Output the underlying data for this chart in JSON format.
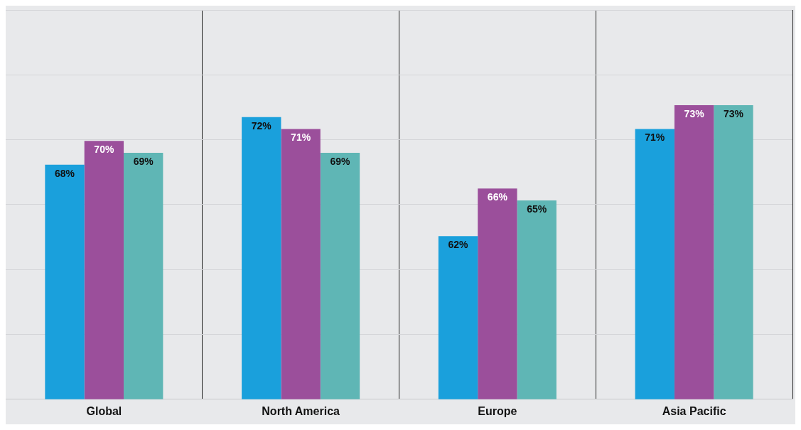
{
  "chart_data": {
    "type": "bar",
    "categories": [
      "Global",
      "North America",
      "Europe",
      "Asia Pacific"
    ],
    "series": [
      {
        "color": "#1aa0dc",
        "values": [
          68,
          72,
          62,
          71
        ],
        "value_labels": [
          "68%",
          "72%",
          "62%",
          "71%"
        ]
      },
      {
        "color": "#9b4f9b",
        "values": [
          70,
          71,
          66,
          73
        ],
        "value_labels": [
          "70%",
          "71%",
          "66%",
          "73%"
        ]
      },
      {
        "color": "#5fb6b5",
        "values": [
          69,
          69,
          65,
          73
        ],
        "value_labels": [
          "69%",
          "69%",
          "65%",
          "73%"
        ]
      }
    ],
    "ylim": [
      48.3,
      81
    ],
    "yticks": [
      {
        "value": 48.3,
        "label": null
      },
      {
        "value": 53.75,
        "label": null
      },
      {
        "value": 59.2,
        "label": null
      },
      {
        "value": 64.65,
        "label": null
      },
      {
        "value": 70.1,
        "label": null
      },
      {
        "value": 75.55,
        "label": null
      },
      {
        "value": 81,
        "label": null
      }
    ],
    "grid": true,
    "tick_labels": "x"
  }
}
